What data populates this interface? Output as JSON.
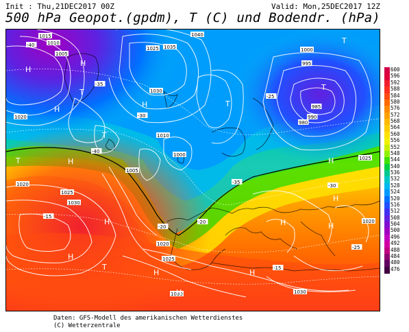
{
  "header": {
    "init": "Init : Thu,21DEC2017 00Z",
    "valid": "Valid: Mon,25DEC2017 12Z",
    "title": "500 hPa Geopot.(gpdm), T (C) und Bodendr. (hPa)"
  },
  "footer": {
    "line1": "Daten: GFS-Modell des amerikanischen Wetterdienstes",
    "line2": "(C) Wetterzentrale"
  },
  "legend": {
    "values": [
      "600",
      "596",
      "592",
      "588",
      "584",
      "580",
      "576",
      "572",
      "568",
      "564",
      "560",
      "556",
      "552",
      "548",
      "544",
      "540",
      "536",
      "532",
      "528",
      "524",
      "520",
      "516",
      "512",
      "508",
      "504",
      "500",
      "496",
      "492",
      "488",
      "484",
      "480",
      "476"
    ],
    "colors": [
      "#d40047",
      "#e0003c",
      "#f0202e",
      "#ff3020",
      "#ff4a10",
      "#ff6a00",
      "#ff8a00",
      "#ffa000",
      "#ffb800",
      "#ffcc00",
      "#ffe000",
      "#f0f000",
      "#c8f000",
      "#90f000",
      "#40e000",
      "#00d040",
      "#00c890",
      "#00c8c8",
      "#00b8f0",
      "#0098ff",
      "#0070ff",
      "#2050ff",
      "#4030f0",
      "#6020e0",
      "#8010d0",
      "#a000c0",
      "#c000c0",
      "#d000a0",
      "#c00080",
      "#900070",
      "#600060",
      "#400040"
    ]
  },
  "map": {
    "pressure_labels": [
      {
        "text": "1015",
        "pos": "nw"
      },
      {
        "text": "1010",
        "pos": "nw"
      },
      {
        "text": "1005",
        "pos": "nw"
      },
      {
        "text": "1025",
        "pos": "n"
      },
      {
        "text": "1040",
        "pos": "n"
      },
      {
        "text": "1035",
        "pos": "n"
      },
      {
        "text": "1030",
        "pos": "n"
      },
      {
        "text": "1020",
        "pos": "w"
      },
      {
        "text": "1000",
        "pos": "ne"
      },
      {
        "text": "995",
        "pos": "ne"
      },
      {
        "text": "985",
        "pos": "ne"
      },
      {
        "text": "990",
        "pos": "ne"
      },
      {
        "text": "980",
        "pos": "ne"
      },
      {
        "text": "1010",
        "pos": "c"
      },
      {
        "text": "1000",
        "pos": "c"
      },
      {
        "text": "1005",
        "pos": "c"
      },
      {
        "text": "1020",
        "pos": "sw"
      },
      {
        "text": "1025",
        "pos": "sw"
      },
      {
        "text": "1030",
        "pos": "sw"
      },
      {
        "text": "1020",
        "pos": "s"
      },
      {
        "text": "1025",
        "pos": "s"
      },
      {
        "text": "1030",
        "pos": "s"
      },
      {
        "text": "1030",
        "pos": "se"
      },
      {
        "text": "1025",
        "pos": "e"
      },
      {
        "text": "1020",
        "pos": "e"
      }
    ],
    "temp_labels": [
      "-40",
      "-35",
      "-30",
      "-25",
      "-20",
      "-15"
    ],
    "highs": [
      "H",
      "H",
      "H",
      "H",
      "H",
      "H",
      "H",
      "H",
      "H",
      "H",
      "H",
      "H",
      "H",
      "H"
    ],
    "lows": [
      "T",
      "T",
      "T",
      "T",
      "T",
      "T",
      "T"
    ]
  }
}
